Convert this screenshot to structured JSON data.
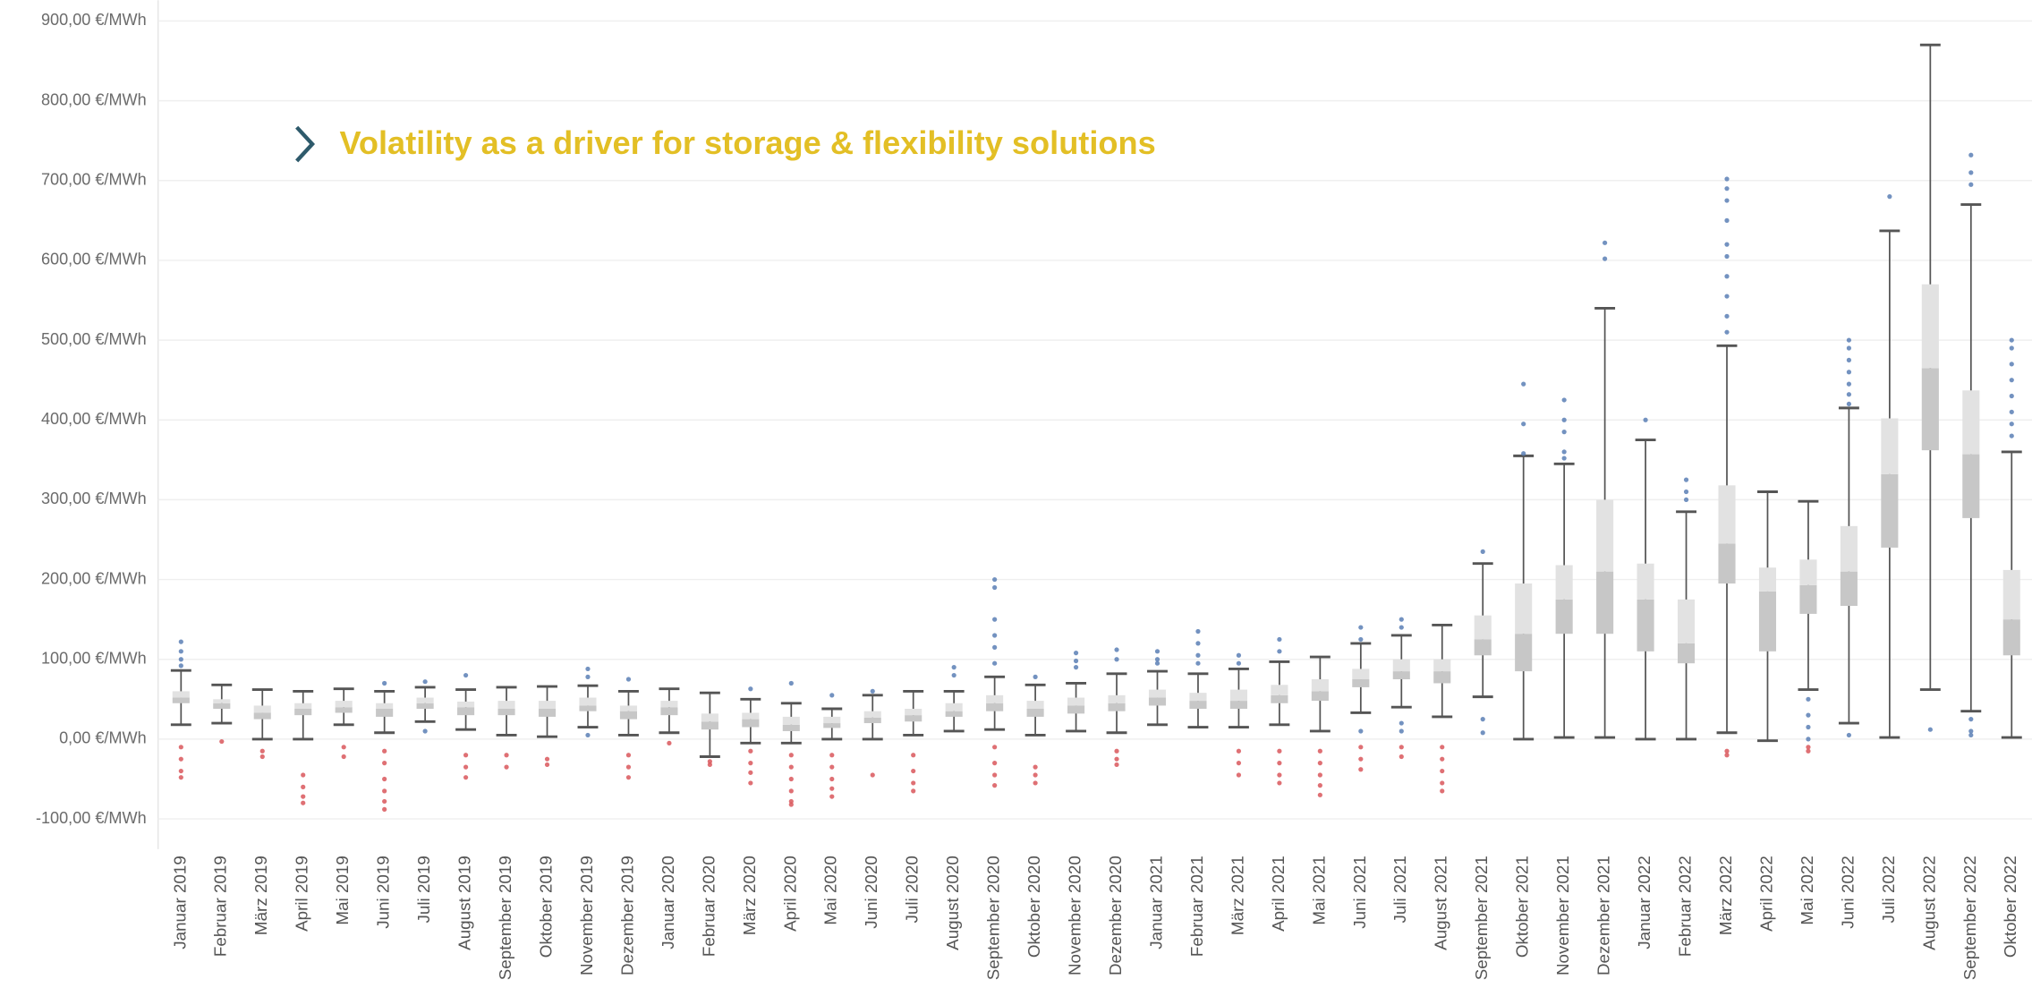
{
  "chart_data": {
    "type": "box",
    "title": "Volatility as a driver for storage & flexibility solutions",
    "categories": [
      "Januar 2019",
      "Februar 2019",
      "März 2019",
      "April 2019",
      "Mai 2019",
      "Juni 2019",
      "Juli 2019",
      "August 2019",
      "September 2019",
      "Oktober 2019",
      "November 2019",
      "Dezember 2019",
      "Januar 2020",
      "Februar 2020",
      "März 2020",
      "April 2020",
      "Mai 2020",
      "Juni 2020",
      "Juli 2020",
      "August 2020",
      "September 2020",
      "Oktober 2020",
      "November 2020",
      "Dezember 2020",
      "Januar 2021",
      "Februar 2021",
      "März 2021",
      "April 2021",
      "Mai 2021",
      "Juni 2021",
      "Juli 2021",
      "August 2021",
      "September 2021",
      "Oktober 2021",
      "November 2021",
      "Dezember 2021",
      "Januar 2022",
      "Februar 2022",
      "März 2022",
      "April 2022",
      "Mai 2022",
      "Juni 2022",
      "Juli 2022",
      "August 2022",
      "September 2022",
      "Oktober 2022"
    ],
    "whisker_high": [
      86,
      68,
      62,
      60,
      63,
      60,
      65,
      62,
      65,
      66,
      67,
      60,
      63,
      58,
      50,
      45,
      38,
      55,
      60,
      60,
      78,
      68,
      70,
      82,
      85,
      82,
      88,
      97,
      103,
      120,
      130,
      143,
      220,
      355,
      345,
      540,
      375,
      285,
      493,
      310,
      298,
      415,
      637,
      870,
      670,
      360
    ],
    "q3": [
      60,
      50,
      42,
      45,
      48,
      45,
      52,
      47,
      48,
      48,
      52,
      42,
      48,
      32,
      33,
      28,
      28,
      35,
      38,
      45,
      55,
      48,
      52,
      55,
      62,
      58,
      62,
      68,
      75,
      88,
      100,
      100,
      155,
      195,
      218,
      300,
      220,
      175,
      318,
      215,
      225,
      267,
      402,
      570,
      437,
      212
    ],
    "median": [
      52,
      45,
      33,
      38,
      40,
      38,
      45,
      40,
      38,
      38,
      42,
      35,
      40,
      22,
      25,
      18,
      20,
      27,
      30,
      35,
      45,
      38,
      42,
      45,
      52,
      48,
      48,
      55,
      60,
      75,
      85,
      85,
      125,
      132,
      175,
      210,
      175,
      120,
      245,
      185,
      193,
      210,
      332,
      465,
      357,
      150
    ],
    "q1": [
      45,
      38,
      25,
      30,
      33,
      28,
      38,
      30,
      30,
      28,
      35,
      25,
      30,
      12,
      15,
      10,
      14,
      20,
      22,
      28,
      35,
      28,
      32,
      35,
      42,
      38,
      38,
      45,
      48,
      65,
      75,
      70,
      105,
      85,
      132,
      132,
      110,
      95,
      195,
      110,
      157,
      167,
      240,
      362,
      277,
      105
    ],
    "whisker_low": [
      18,
      20,
      0,
      0,
      18,
      8,
      22,
      12,
      5,
      3,
      15,
      5,
      8,
      -22,
      -5,
      -5,
      0,
      0,
      5,
      10,
      12,
      5,
      10,
      8,
      18,
      15,
      15,
      18,
      10,
      33,
      40,
      28,
      53,
      0,
      2,
      2,
      0,
      0,
      8,
      -2,
      62,
      20,
      2,
      62,
      35,
      2
    ],
    "outliers": [
      [
        122,
        110,
        100,
        92,
        -10,
        -25,
        -40,
        -48
      ],
      [
        -3
      ],
      [
        -15,
        -22
      ],
      [
        -45,
        -60,
        -72,
        -80
      ],
      [
        -10,
        -22
      ],
      [
        70,
        -15,
        -30,
        -50,
        -65,
        -78,
        -88
      ],
      [
        72,
        10
      ],
      [
        80,
        -20,
        -35,
        -48
      ],
      [
        -20,
        -35
      ],
      [
        -25,
        -32
      ],
      [
        88,
        78,
        5
      ],
      [
        75,
        -20,
        -35,
        -48
      ],
      [
        -5
      ],
      [
        -28,
        -32
      ],
      [
        63,
        -15,
        -30,
        -42,
        -55
      ],
      [
        70,
        -20,
        -35,
        -50,
        -65,
        -78,
        -82
      ],
      [
        55,
        -20,
        -35,
        -50,
        -62,
        -72
      ],
      [
        60,
        -45
      ],
      [
        -20,
        -40,
        -55,
        -65
      ],
      [
        90,
        80
      ],
      [
        200,
        190,
        150,
        130,
        115,
        95,
        -10,
        -30,
        -45,
        -58
      ],
      [
        78,
        -35,
        -45,
        -55
      ],
      [
        108,
        98,
        90
      ],
      [
        112,
        100,
        -15,
        -25,
        -32
      ],
      [
        110,
        100,
        95
      ],
      [
        135,
        120,
        105,
        95
      ],
      [
        105,
        95,
        -15,
        -30,
        -45
      ],
      [
        125,
        110,
        -15,
        -30,
        -45,
        -55
      ],
      [
        -15,
        -30,
        -45,
        -58,
        -70
      ],
      [
        140,
        125,
        10,
        -10,
        -25,
        -38
      ],
      [
        150,
        140,
        20,
        10,
        -10,
        -22
      ],
      [
        -10,
        -25,
        -40,
        -55,
        -65
      ],
      [
        235,
        25,
        8
      ],
      [
        445,
        395,
        358
      ],
      [
        425,
        400,
        385,
        360,
        352
      ],
      [
        622,
        602
      ],
      [
        400
      ],
      [
        325,
        310,
        300
      ],
      [
        702,
        690,
        675,
        650,
        620,
        605,
        580,
        555,
        530,
        510,
        -15,
        -20
      ],
      [],
      [
        50,
        30,
        15,
        0,
        -10,
        -15
      ],
      [
        500,
        490,
        475,
        460,
        445,
        432,
        420,
        5
      ],
      [
        680
      ],
      [
        12
      ],
      [
        732,
        710,
        695,
        25,
        10,
        5
      ],
      [
        500,
        490,
        470,
        450,
        430,
        410,
        395,
        380
      ]
    ],
    "box_colors": {
      "upper": "#e2e2e2",
      "lower": "#c7c7c7"
    },
    "whisker_color": "#555555",
    "outlier_colors": {
      "positive": "#5a7fb5",
      "negative": "#d9575c"
    },
    "ylim": [
      -138,
      926
    ],
    "yticks": [
      {
        "value": -100,
        "label": "-100,00 €/MWh"
      },
      {
        "value": 0,
        "label": "0,00 €/MWh"
      },
      {
        "value": 100,
        "label": "100,00 €/MWh"
      },
      {
        "value": 200,
        "label": "200,00 €/MWh"
      },
      {
        "value": 300,
        "label": "300,00 €/MWh"
      },
      {
        "value": 400,
        "label": "400,00 €/MWh"
      },
      {
        "value": 500,
        "label": "500,00 €/MWh"
      },
      {
        "value": 600,
        "label": "600,00 €/MWh"
      },
      {
        "value": 700,
        "label": "700,00 €/MWh"
      },
      {
        "value": 800,
        "label": "800,00 €/MWh"
      },
      {
        "value": 900,
        "label": "900,00 €/MWh"
      }
    ],
    "grid": true
  }
}
